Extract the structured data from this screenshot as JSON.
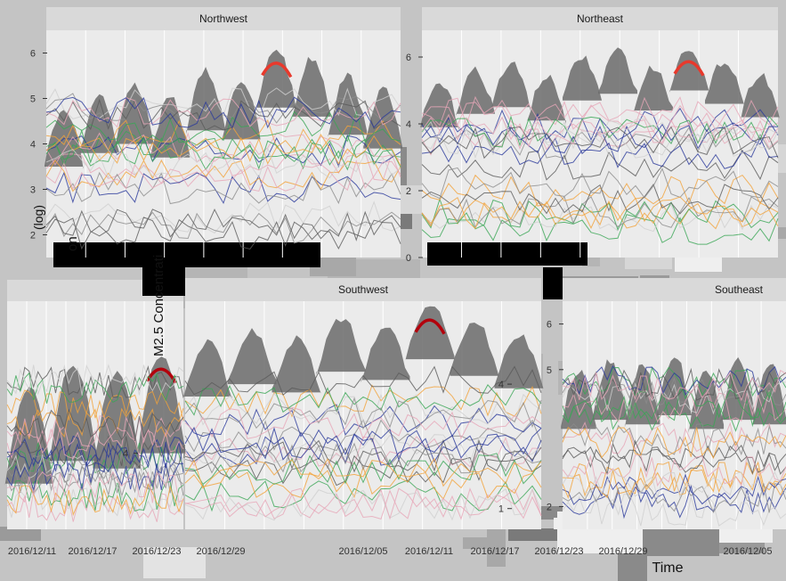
{
  "colors": {
    "panel_bg": "#ebebeb",
    "strip_bg": "#d9d9d9",
    "gridline": "#ffffff",
    "band": "#6b6b6b",
    "highlight": "#e8392c",
    "highlight_dark": "#b3000c",
    "series_green": "#3aa655",
    "series_pink": "#e7a6b8",
    "series_blue": "#2b3a9b",
    "series_orange": "#f2a33a",
    "noise": "#8c8c8c"
  },
  "chart_data": [
    {
      "type": "area",
      "facet": "Northwest",
      "title": "Northwest",
      "yticks": [
        "2",
        "3",
        "4",
        "5",
        "6"
      ],
      "xticks": [],
      "ylabel": "(log)",
      "highlight": "red",
      "peaks": [
        4.8,
        5.1,
        5.3,
        5.0,
        5.6,
        5.4,
        6.1,
        5.9,
        5.5,
        5.2
      ]
    },
    {
      "type": "area",
      "facet": "Northeast",
      "title": "Northeast",
      "yticks": [
        "0",
        "2",
        "4",
        "6"
      ],
      "xticks": [],
      "highlight": "red",
      "peaks": [
        5.2,
        5.6,
        5.8,
        5.4,
        6.0,
        6.2,
        5.7,
        6.3,
        5.9,
        5.5
      ]
    },
    {
      "type": "area",
      "facet": "",
      "title": "",
      "yticks": [
        "4"
      ],
      "xticks": [
        "2016/12/11",
        "2016/12/17",
        "2016/12/23",
        "2016/12/29"
      ],
      "highlight": "darkred",
      "peaks": [
        4.9,
        5.2,
        5.1,
        5.3
      ]
    },
    {
      "type": "area",
      "facet": "Southwest",
      "title": "Southwest",
      "yticks": [
        "1",
        "4"
      ],
      "xticks": [
        "2016/12/05",
        "2016/12/11",
        "2016/12/17",
        "2016/12/23",
        "2016/12/29"
      ],
      "highlight": "darkred",
      "peaks": [
        5.0,
        5.3,
        5.1,
        5.6,
        5.4,
        5.9,
        5.5,
        5.2
      ]
    },
    {
      "type": "area",
      "facet": "Southeast",
      "title": "Southeast",
      "yticks": [
        "2",
        "5",
        "6"
      ],
      "xticks": [
        "2016/12/05"
      ],
      "highlight": "none",
      "peaks": [
        5.0,
        5.2,
        5.1,
        5.3,
        5.0,
        5.2,
        5.1
      ]
    }
  ],
  "axes": {
    "x_title": "Time",
    "y_title_fragments": [
      "M2.5 Concentrati",
      "on"
    ],
    "y_title_log": "(log)"
  }
}
